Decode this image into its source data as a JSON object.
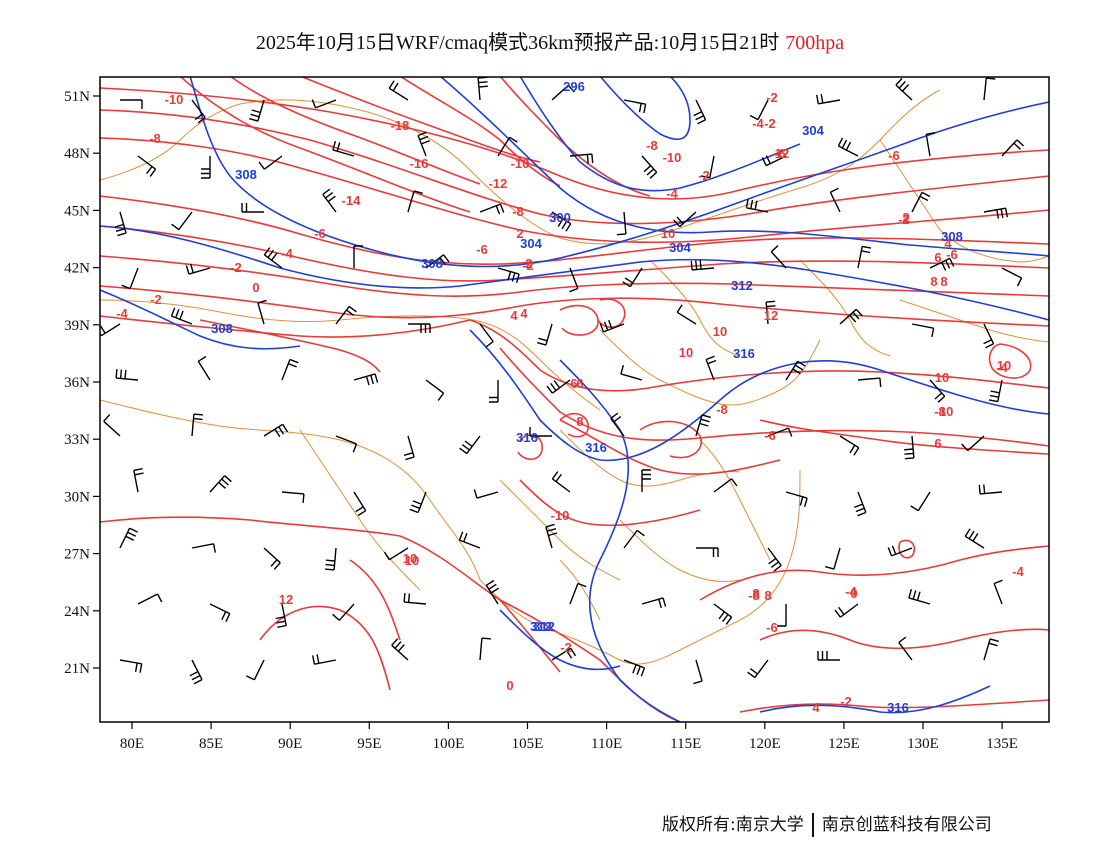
{
  "title": {
    "text": "2025年10月15日WRF/cmaq模式36km预报产品:10月15日21时",
    "level": "700hpa"
  },
  "copyright": {
    "left": "版权所有:南京大学",
    "right": "南京创蓝科技有限公司"
  },
  "axes": {
    "lon_ticks": [
      "80E",
      "85E",
      "90E",
      "95E",
      "100E",
      "105E",
      "110E",
      "115E",
      "120E",
      "125E",
      "130E",
      "135E"
    ],
    "lat_ticks": [
      "51N",
      "48N",
      "45N",
      "42N",
      "39N",
      "36N",
      "33N",
      "30N",
      "27N",
      "24N",
      "21N"
    ]
  },
  "colors": {
    "temperature": "#e83a3a",
    "height": "#1f3fd6",
    "border": "#e0903a",
    "wind": "#000000"
  },
  "contour_labels": {
    "temperature": [
      "-10",
      "-8",
      "-18",
      "-16",
      "-14",
      "-12",
      "-10",
      "-8",
      "-6",
      "-4",
      "-2",
      "0",
      "-2",
      "-4",
      "-6",
      "2",
      "4",
      "6",
      "8",
      "10",
      "12",
      "-10",
      "-8",
      "-6",
      "-4",
      "-2",
      "0",
      "-2",
      "-4",
      "-6",
      "-8",
      "-10",
      "-4",
      "-2",
      "2",
      "4",
      "6",
      "8",
      "10",
      "12",
      "10",
      "10",
      "10",
      "10",
      "-10",
      "6",
      "-6",
      "4",
      "8",
      "8",
      "-4",
      "-8",
      "-2",
      "0",
      "2",
      "-2",
      "4",
      "6",
      "8",
      "10",
      "12",
      "-6",
      "-2",
      "-8",
      "-6",
      "-4",
      "-2"
    ],
    "height": [
      "308",
      "312",
      "296",
      "300",
      "304",
      "308",
      "308",
      "304",
      "312",
      "316",
      "316",
      "316",
      "312",
      "316",
      "308",
      "304"
    ]
  }
}
